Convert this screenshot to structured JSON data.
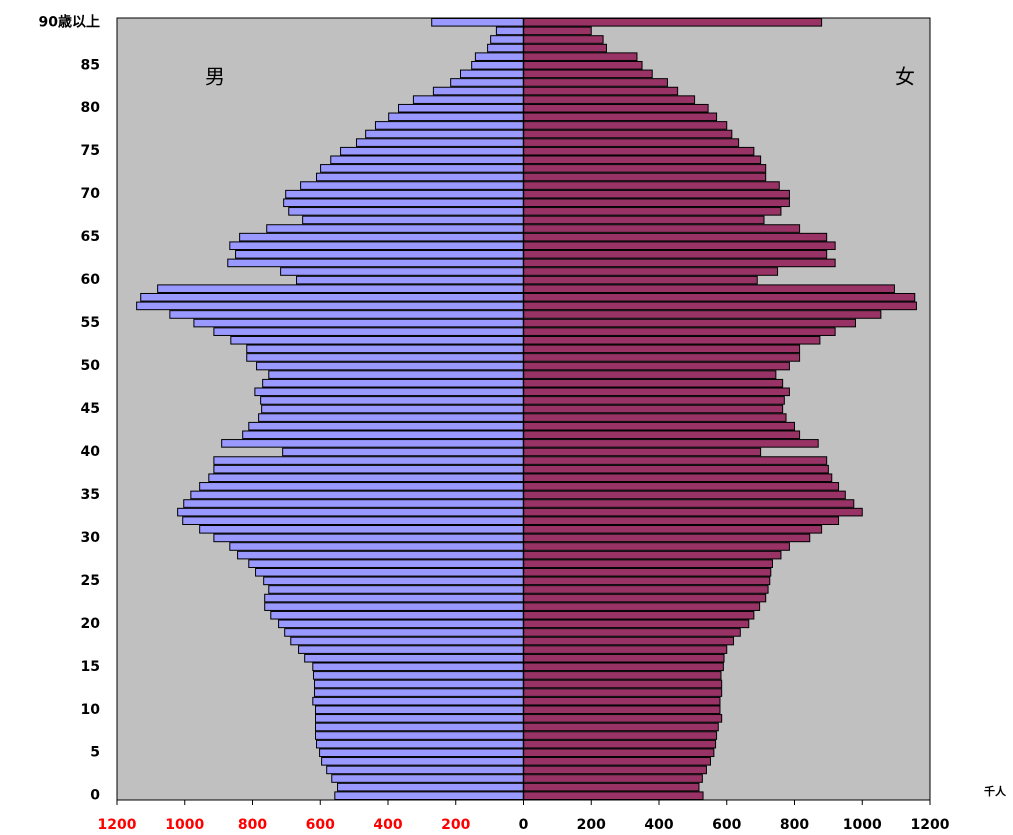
{
  "chart_data": {
    "type": "pyramid",
    "left_label": "男",
    "right_label": "女",
    "unit": "千人",
    "categories": [
      "0",
      null,
      null,
      null,
      null,
      "5",
      null,
      null,
      null,
      null,
      "10",
      null,
      null,
      null,
      null,
      "15",
      null,
      null,
      null,
      null,
      "20",
      null,
      null,
      null,
      null,
      "25",
      null,
      null,
      null,
      null,
      "30",
      null,
      null,
      null,
      null,
      "35",
      null,
      null,
      null,
      null,
      "40",
      null,
      null,
      null,
      null,
      "45",
      null,
      null,
      null,
      null,
      "50",
      null,
      null,
      null,
      null,
      "55",
      null,
      null,
      null,
      null,
      "60",
      null,
      null,
      null,
      null,
      "65",
      null,
      null,
      null,
      null,
      "70",
      null,
      null,
      null,
      null,
      "75",
      null,
      null,
      null,
      null,
      "80",
      null,
      null,
      null,
      null,
      "85",
      null,
      null,
      null,
      null,
      "90歳以上"
    ],
    "series": [
      {
        "name": "男",
        "side": "left",
        "color": "#9999ff",
        "values": [
          557,
          549,
          566,
          581,
          596,
          602,
          611,
          614,
          614,
          614,
          614,
          622,
          617,
          617,
          620,
          622,
          646,
          664,
          687,
          705,
          723,
          746,
          764,
          764,
          752,
          767,
          791,
          811,
          844,
          867,
          914,
          956,
          1006,
          1021,
          1003,
          982,
          956,
          929,
          914,
          914,
          711,
          891,
          829,
          811,
          782,
          773,
          776,
          793,
          770,
          752,
          788,
          817,
          817,
          864,
          914,
          973,
          1044,
          1142,
          1130,
          1080,
          670,
          717,
          873,
          850,
          867,
          838,
          758,
          652,
          693,
          708,
          702,
          658,
          611,
          599,
          569,
          540,
          493,
          466,
          437,
          398,
          369,
          325,
          266,
          215,
          186,
          153,
          142,
          106,
          97,
          80,
          271
        ]
      },
      {
        "name": "女",
        "side": "right",
        "color": "#993366",
        "values": [
          530,
          518,
          528,
          540,
          552,
          562,
          567,
          570,
          575,
          585,
          580,
          580,
          585,
          585,
          583,
          590,
          592,
          600,
          620,
          640,
          665,
          680,
          697,
          715,
          722,
          727,
          730,
          735,
          760,
          785,
          845,
          880,
          930,
          1000,
          975,
          950,
          930,
          910,
          900,
          895,
          700,
          870,
          815,
          800,
          775,
          765,
          770,
          785,
          765,
          745,
          785,
          815,
          815,
          875,
          920,
          980,
          1055,
          1160,
          1155,
          1095,
          690,
          750,
          920,
          895,
          920,
          895,
          815,
          710,
          760,
          785,
          785,
          755,
          715,
          715,
          700,
          680,
          635,
          615,
          600,
          570,
          545,
          505,
          455,
          425,
          380,
          350,
          335,
          245,
          235,
          200,
          880
        ]
      }
    ],
    "xlim": [
      0,
      1200
    ],
    "xticks": [
      0,
      200,
      400,
      600,
      800,
      1000,
      1200
    ],
    "left_tick_color": "#ff0000",
    "right_tick_color": "#000000",
    "plot_background": "#c0c0c0"
  }
}
